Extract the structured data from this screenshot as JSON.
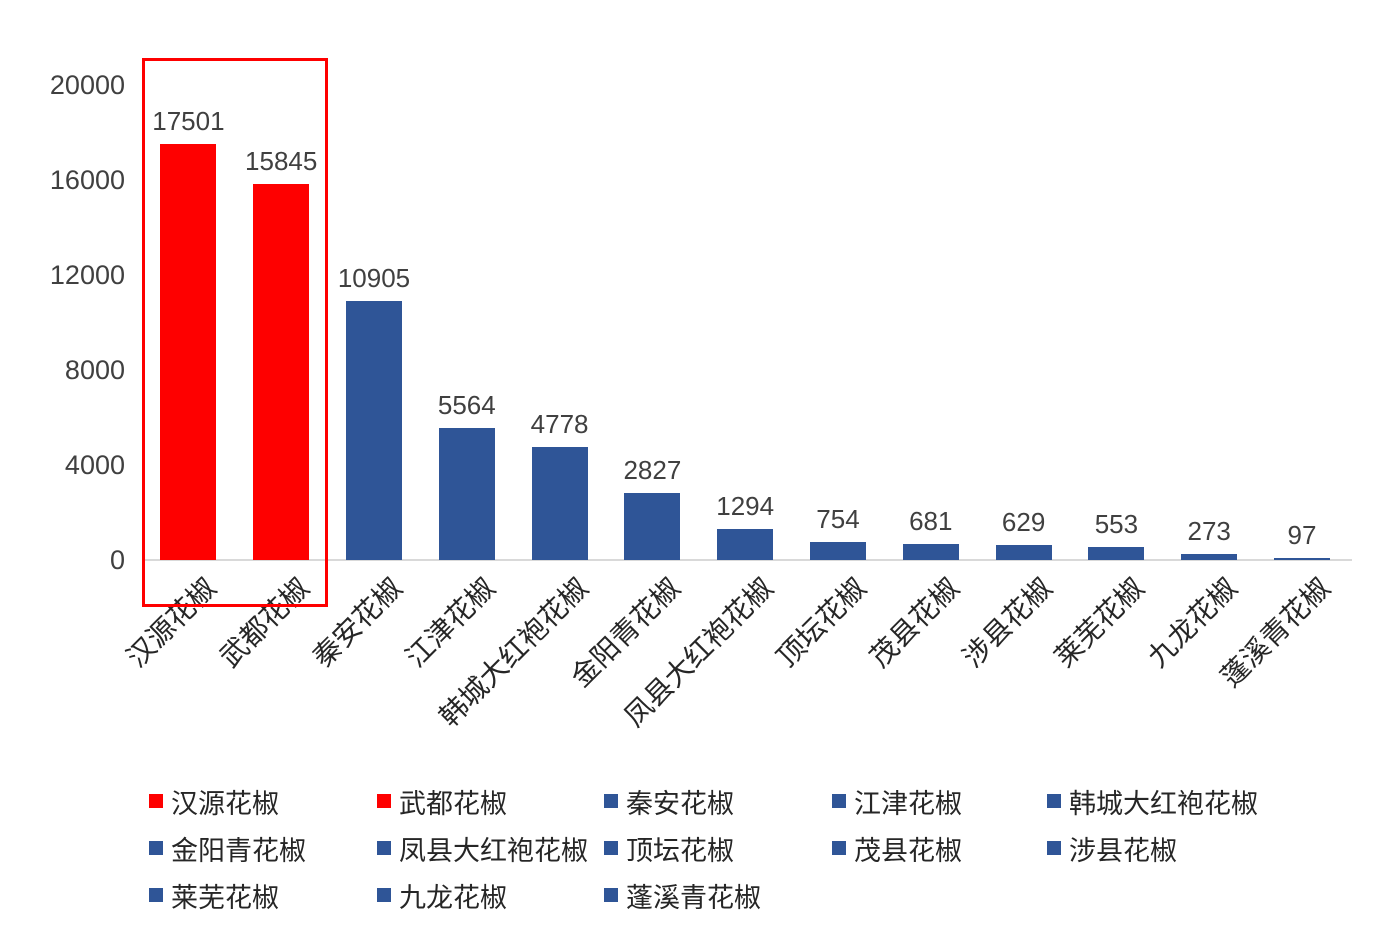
{
  "chart_data": {
    "type": "bar",
    "title": "",
    "xlabel": "",
    "ylabel": "",
    "categories": [
      "汉源花椒",
      "武都花椒",
      "秦安花椒",
      "江津花椒",
      "韩城大红袍花椒",
      "金阳青花椒",
      "凤县大红袍花椒",
      "顶坛花椒",
      "茂县花椒",
      "涉县花椒",
      "莱芜花椒",
      "九龙花椒",
      "蓬溪青花椒"
    ],
    "values": [
      17501,
      15845,
      10905,
      5564,
      4778,
      2827,
      1294,
      754,
      681,
      629,
      553,
      273,
      97
    ],
    "data_labels": [
      "17501",
      "15845",
      "10905",
      "5564",
      "4778",
      "2827",
      "1294",
      "754",
      "681",
      "629",
      "553",
      "273",
      "97"
    ],
    "bar_colors": [
      "#fe0000",
      "#fe0000",
      "#2f5597",
      "#2f5597",
      "#2f5597",
      "#2f5597",
      "#2f5597",
      "#2f5597",
      "#2f5597",
      "#2f5597",
      "#2f5597",
      "#2f5597",
      "#2f5597"
    ],
    "ylim": [
      0,
      20000
    ],
    "yticks": [
      0,
      4000,
      8000,
      12000,
      16000,
      20000
    ],
    "ytick_labels": [
      "0",
      "4000",
      "8000",
      "12000",
      "16000",
      "20000"
    ],
    "grid": false,
    "legend_position": "bottom",
    "x_label_rotation_deg": 45,
    "highlight": {
      "shape": "rectangle-outline",
      "color": "#fe0000",
      "covers_categories": [
        "汉源花椒",
        "武都花椒"
      ]
    }
  },
  "legend": {
    "items": [
      {
        "label": "汉源花椒",
        "color": "#fe0000"
      },
      {
        "label": "武都花椒",
        "color": "#fe0000"
      },
      {
        "label": "秦安花椒",
        "color": "#2f5597"
      },
      {
        "label": "江津花椒",
        "color": "#2f5597"
      },
      {
        "label": "韩城大红袍花椒",
        "color": "#2f5597"
      },
      {
        "label": "金阳青花椒",
        "color": "#2f5597"
      },
      {
        "label": "凤县大红袍花椒",
        "color": "#2f5597"
      },
      {
        "label": "顶坛花椒",
        "color": "#2f5597"
      },
      {
        "label": "茂县花椒",
        "color": "#2f5597"
      },
      {
        "label": "涉县花椒",
        "color": "#2f5597"
      },
      {
        "label": "莱芜花椒",
        "color": "#2f5597"
      },
      {
        "label": "九龙花椒",
        "color": "#2f5597"
      },
      {
        "label": "蓬溪青花椒",
        "color": "#2f5597"
      }
    ]
  },
  "colors": {
    "highlight_red": "#fe0000",
    "series_blue": "#2f5597",
    "axis_line": "#d9d9d9",
    "tick_text": "#404040",
    "label_text": "#262626",
    "background": "#ffffff"
  }
}
